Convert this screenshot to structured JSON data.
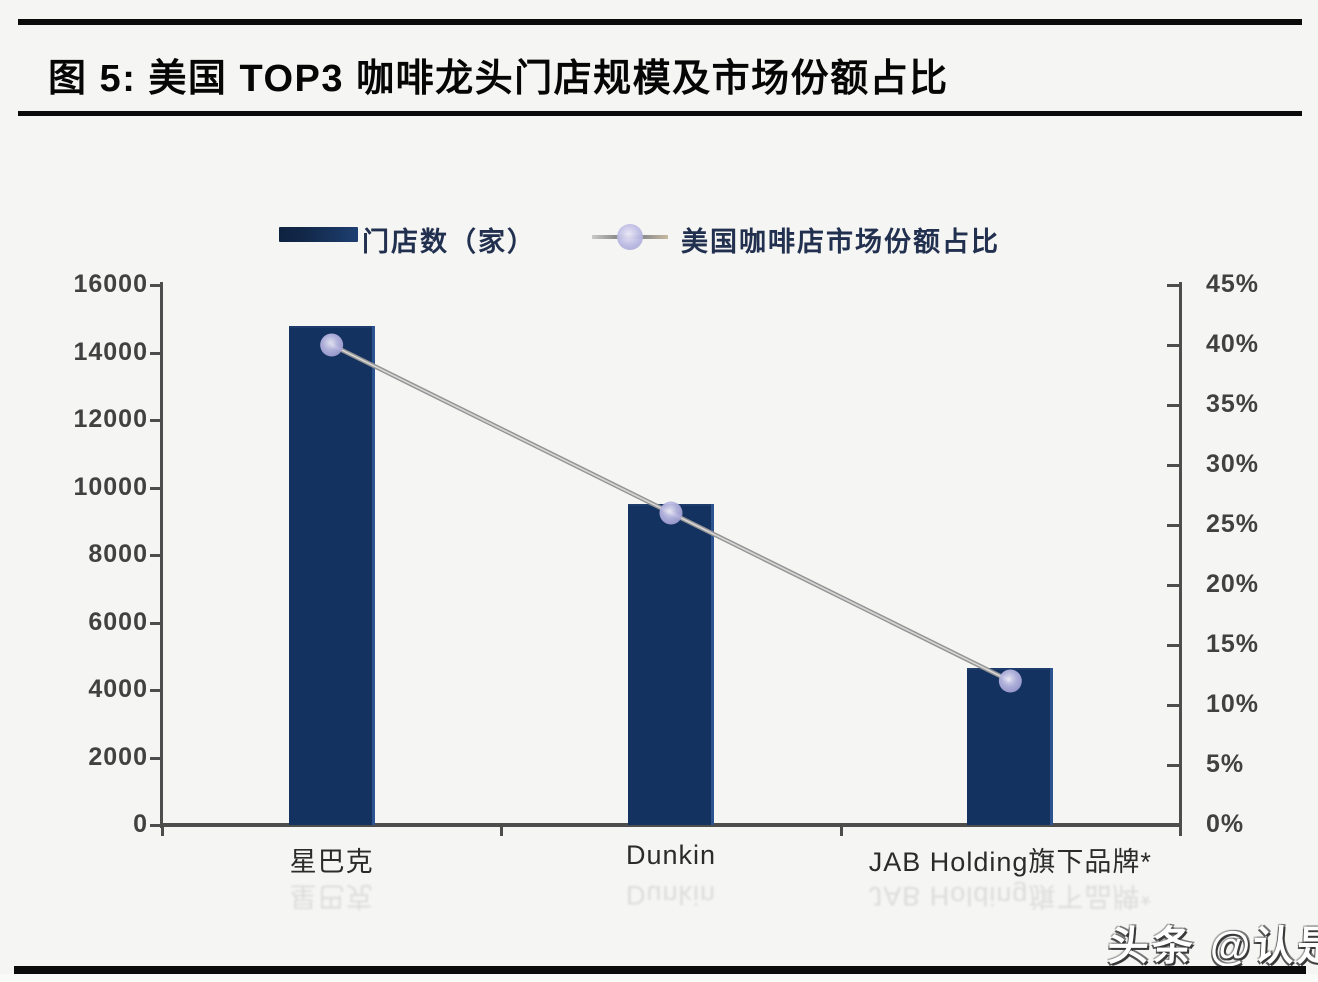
{
  "title": {
    "text": "图 5:  美国 TOP3 咖啡龙头门店规模及市场份额占比"
  },
  "watermark": "头条 @认是",
  "chart_data": {
    "type": "bar",
    "subtype": "bar+line dual axis",
    "title": "美国 TOP3 咖啡龙头门店规模及市场份额占比",
    "categories": [
      "星巴克",
      "Dunkin",
      "JAB Holding旗下品牌*"
    ],
    "series": [
      {
        "name": "门店数（家）",
        "type": "bar",
        "axis": "left",
        "values": [
          14800,
          9500,
          4650
        ],
        "color": "#143260"
      },
      {
        "name": "美国咖啡店市场份额占比",
        "type": "line",
        "axis": "right",
        "values": [
          40,
          26,
          12
        ],
        "unit": "%",
        "line_color": "#949494",
        "marker_color": "#aeadd9"
      }
    ],
    "left_axis": {
      "min": 0,
      "max": 16000,
      "step": 2000,
      "tick_labels": [
        "16000",
        "14000",
        "12000",
        "10000",
        "8000",
        "6000",
        "4000",
        "2000",
        "0"
      ]
    },
    "right_axis": {
      "min": 0,
      "max": 45,
      "step": 5,
      "tick_labels": [
        "45%",
        "40%",
        "35%",
        "30%",
        "25%",
        "20%",
        "15%",
        "10%",
        "5%",
        "0%"
      ]
    },
    "legend_position": "top",
    "grid": false
  }
}
